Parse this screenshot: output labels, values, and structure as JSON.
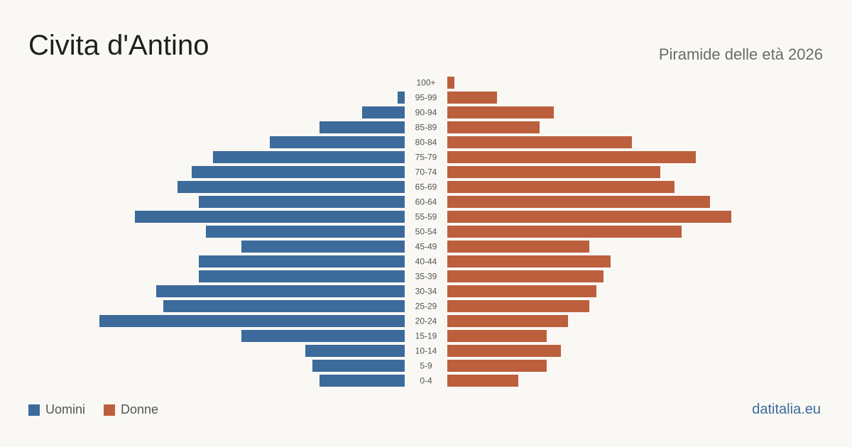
{
  "header": {
    "title": "Civita d'Antino",
    "subtitle": "Piramide delle età 2026"
  },
  "legend": {
    "men_label": "Uomini",
    "women_label": "Donne"
  },
  "footer": {
    "source": "datitalia.eu"
  },
  "colors": {
    "men": "#3c6a9b",
    "women": "#bc5f3d",
    "background": "#faf8f4",
    "age_label": "#555555"
  },
  "chart_data": {
    "type": "bar",
    "orientation": "horizontal-pyramid",
    "categories": [
      "100+",
      "95-99",
      "90-94",
      "85-89",
      "80-84",
      "75-79",
      "70-74",
      "65-69",
      "60-64",
      "55-59",
      "50-54",
      "45-49",
      "40-44",
      "35-39",
      "30-34",
      "25-29",
      "20-24",
      "15-19",
      "10-14",
      "5-9",
      "0-4"
    ],
    "series": [
      {
        "name": "Uomini",
        "values": [
          0,
          1,
          6,
          12,
          19,
          27,
          30,
          32,
          29,
          38,
          28,
          23,
          29,
          29,
          35,
          34,
          43,
          23,
          14,
          13,
          12
        ]
      },
      {
        "name": "Donne",
        "values": [
          1,
          7,
          15,
          13,
          26,
          35,
          30,
          32,
          37,
          40,
          33,
          20,
          23,
          22,
          21,
          20,
          17,
          14,
          16,
          14,
          10
        ]
      }
    ],
    "title": "Piramide delle età 2026",
    "legend_position": "bottom-left",
    "grid": false
  }
}
